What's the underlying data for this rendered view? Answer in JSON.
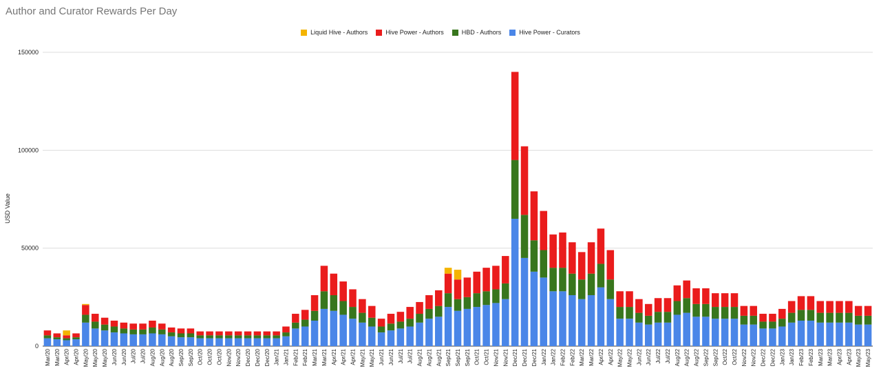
{
  "chart_data": {
    "type": "bar",
    "stacked": true,
    "title": "Author and Curator Rewards Per Day",
    "ylabel": "USD Value",
    "xlabel": "",
    "ylim": [
      0,
      150000
    ],
    "yticks": [
      0,
      50000,
      100000,
      150000
    ],
    "grid": true,
    "legend_position": "top",
    "series": [
      {
        "name": "Liquid Hive - Authors",
        "color": "#f4b400"
      },
      {
        "name": "Hive Power - Authors",
        "color": "#ea1c1c"
      },
      {
        "name": "HBD - Authors",
        "color": "#38761d"
      },
      {
        "name": "Hive Power - Curators",
        "color": "#4a86e8"
      }
    ],
    "categories": [
      "Mar/20",
      "Mar/20",
      "Apr/20",
      "Apr/20",
      "May/20",
      "May/20",
      "May/20",
      "Jun/20",
      "Jun/20",
      "Jul/20",
      "Jul/20",
      "Aug/20",
      "Aug/20",
      "Aug/20",
      "Sep/20",
      "Sep/20",
      "Oct/20",
      "Oct/20",
      "Oct/20",
      "Nov/20",
      "Nov/20",
      "Dec/20",
      "Dec/20",
      "Dec/20",
      "Jan/21",
      "Jan/21",
      "Feb/21",
      "Feb/21",
      "Mar/21",
      "Mar/21",
      "Apr/21",
      "Apr/21",
      "Apr/21",
      "May/21",
      "May/21",
      "Jun/21",
      "Jun/21",
      "Jul/21",
      "Jul/21",
      "Aug/21",
      "Aug/21",
      "Aug/21",
      "Sep/21",
      "Sep/21",
      "Sep/21",
      "Oct/21",
      "Oct/21",
      "Nov/21",
      "Nov/21",
      "Dec/21",
      "Dec/21",
      "Dec/21",
      "Jan/22",
      "Jan/22",
      "Feb/22",
      "Feb/22",
      "Mar/22",
      "Mar/22",
      "Apr/22",
      "Apr/22",
      "May/22",
      "May/22",
      "Jun/22",
      "Jun/22",
      "Jul/22",
      "Jul/22",
      "Aug/22",
      "Aug/22",
      "Aug/22",
      "Sep/22",
      "Sep/22",
      "Oct/22",
      "Oct/22",
      "Nov/22",
      "Nov/22",
      "Dec/22",
      "Dec/22",
      "Jan/23",
      "Jan/23",
      "Feb/23",
      "Feb/23",
      "Mar/23",
      "Mar/23",
      "Apr/23",
      "Apr/23",
      "May/23",
      "May/23"
    ],
    "stack_values": {
      "Liquid Hive - Authors": [
        0,
        0,
        2500,
        0,
        500,
        0,
        0,
        0,
        0,
        0,
        0,
        0,
        0,
        0,
        0,
        0,
        0,
        0,
        0,
        0,
        0,
        0,
        0,
        0,
        0,
        0,
        0,
        0,
        0,
        0,
        0,
        0,
        0,
        0,
        0,
        0,
        0,
        0,
        0,
        0,
        0,
        0,
        3000,
        5000,
        0,
        0,
        0,
        0,
        0,
        0,
        0,
        0,
        0,
        0,
        0,
        0,
        0,
        0,
        0,
        0,
        0,
        0,
        0,
        0,
        0,
        0,
        0,
        0,
        0,
        0,
        0,
        0,
        0,
        0,
        0,
        0,
        0,
        0,
        0,
        0,
        0,
        0,
        0,
        0,
        0,
        0,
        0
      ],
      "Hive Power - Authors": [
        2500,
        2000,
        1500,
        2000,
        5000,
        4000,
        3500,
        3000,
        3000,
        3000,
        3000,
        3500,
        3000,
        2500,
        2500,
        2500,
        2000,
        2000,
        2000,
        2000,
        2000,
        2000,
        2000,
        2000,
        2000,
        3000,
        4500,
        5000,
        8000,
        13000,
        11000,
        10000,
        9000,
        7000,
        6000,
        4000,
        5000,
        5000,
        6000,
        6000,
        7000,
        8000,
        10000,
        10000,
        10000,
        11000,
        12000,
        12000,
        14000,
        45000,
        35000,
        25000,
        20000,
        17000,
        18000,
        16000,
        14000,
        16000,
        18000,
        15000,
        8000,
        8000,
        7000,
        6000,
        7000,
        7000,
        8000,
        9000,
        8000,
        8000,
        7000,
        7000,
        7000,
        5000,
        5000,
        4000,
        4000,
        5000,
        6000,
        7000,
        7000,
        6000,
        6000,
        6000,
        6000,
        5000,
        5000
      ],
      "HBD - Authors": [
        1500,
        1000,
        1000,
        1000,
        4000,
        3500,
        3000,
        3000,
        2500,
        2500,
        2500,
        3000,
        2500,
        2000,
        2000,
        2000,
        1500,
        1500,
        1500,
        1500,
        1500,
        1500,
        1500,
        1500,
        1500,
        2000,
        3000,
        3500,
        5000,
        9000,
        8000,
        7000,
        6000,
        5000,
        4500,
        3000,
        3500,
        3500,
        4000,
        4500,
        5000,
        5500,
        7000,
        6000,
        6000,
        7000,
        7000,
        7000,
        8000,
        30000,
        22000,
        16000,
        14000,
        12000,
        12000,
        11000,
        10000,
        11000,
        12000,
        10000,
        6000,
        6000,
        5000,
        4500,
        5500,
        5500,
        7000,
        7500,
        6500,
        6500,
        6000,
        6000,
        6000,
        4500,
        4500,
        3500,
        3500,
        4000,
        5000,
        5500,
        5500,
        5000,
        5000,
        5000,
        5000,
        4500,
        4500
      ],
      "Hive Power - Curators": [
        4000,
        3500,
        3000,
        3500,
        12000,
        9000,
        8000,
        7000,
        6500,
        6000,
        6000,
        6500,
        6000,
        5000,
        4500,
        4500,
        4000,
        4000,
        4000,
        4000,
        4000,
        4000,
        4000,
        4000,
        4000,
        5000,
        9000,
        10000,
        13000,
        19000,
        18000,
        16000,
        14000,
        12000,
        10000,
        7000,
        8000,
        9000,
        10000,
        12000,
        14000,
        15000,
        20000,
        18000,
        19000,
        20000,
        21000,
        22000,
        24000,
        65000,
        45000,
        38000,
        35000,
        28000,
        28000,
        26000,
        24000,
        26000,
        30000,
        24000,
        14000,
        14000,
        12000,
        11000,
        12000,
        12000,
        16000,
        17000,
        15000,
        15000,
        14000,
        14000,
        14000,
        11000,
        11000,
        9000,
        9000,
        10000,
        12000,
        13000,
        13000,
        12000,
        12000,
        12000,
        12000,
        11000,
        11000
      ]
    }
  }
}
